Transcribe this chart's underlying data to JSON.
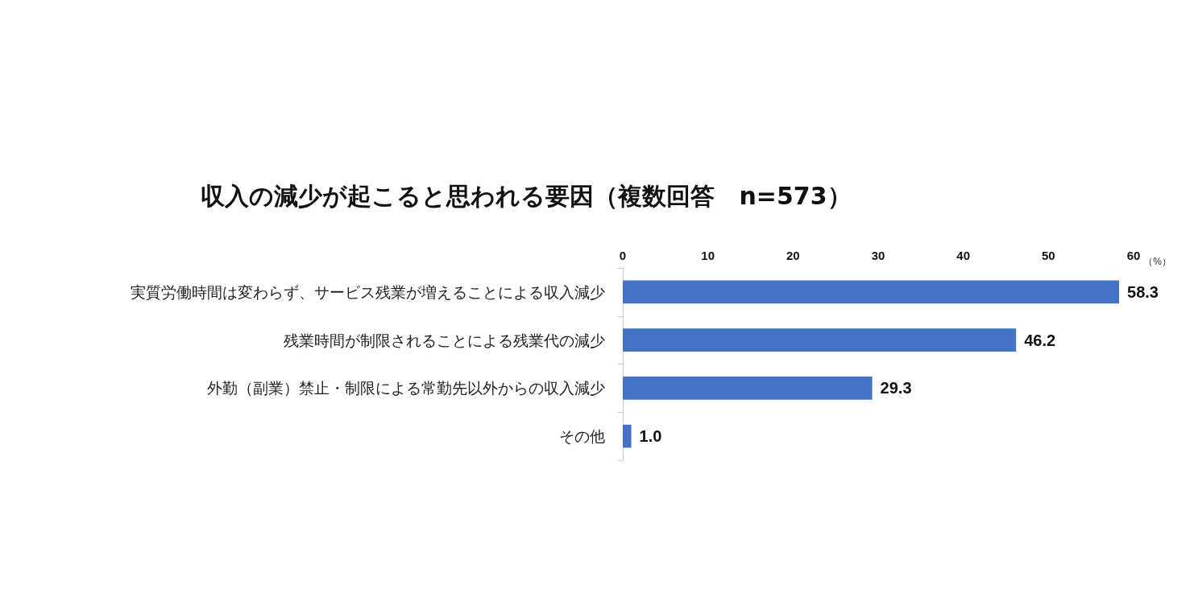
{
  "chart_data": {
    "type": "bar",
    "orientation": "horizontal",
    "title": "収入の減少が起こると思われる要因（複数回答　n=573）",
    "xlabel": "（%）",
    "categories": [
      "実質労働時間は変わらず、サービス残業が増えることによる収入減少",
      "残業時間が制限されることによる残業代の減少",
      "外勤（副業）禁止・制限による常勤先以外からの収入減少",
      "その他"
    ],
    "values": [
      58.3,
      46.2,
      29.3,
      1.0
    ],
    "value_labels": [
      "58.3",
      "46.2",
      "29.3",
      "1.0"
    ],
    "color": "#4472c4",
    "xlim": [
      0,
      60
    ],
    "xticks": [
      0,
      10,
      20,
      30,
      40,
      50,
      60
    ],
    "grid": false
  }
}
